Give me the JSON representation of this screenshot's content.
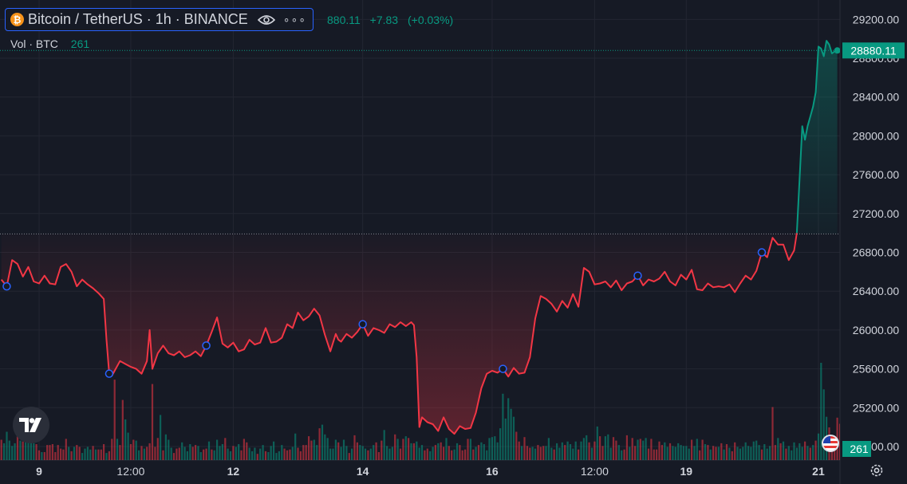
{
  "header": {
    "symbol_title": "Bitcoin / TetherUS · 1h · BINANCE",
    "coin_glyph": "₿",
    "more_label": "∘∘∘",
    "quote_partial_price": "880.11",
    "quote_change": "+7.83",
    "quote_change_pct": "(+0.03%)"
  },
  "volume_legend": {
    "label": "Vol · BTC",
    "value": "261"
  },
  "colors": {
    "up": "#089981",
    "down": "#f23645",
    "background": "#161a25",
    "grid": "#232632",
    "axis_text": "#d1d4dc"
  },
  "chart_data": {
    "type": "line",
    "price_axis": {
      "ticks": [
        29200,
        28800,
        28400,
        28000,
        27600,
        27200,
        26800,
        26400,
        26000,
        25600,
        25200,
        24800
      ],
      "tick_labels": [
        "29200.00",
        "28800.00",
        "28400.00",
        "28000.00",
        "27600.00",
        "27200.00",
        "26800.00",
        "26400.00",
        "26000.00",
        "25600.00",
        "25200.00",
        "24800.00"
      ],
      "last_price_label": "28880.11",
      "baseline": 26990,
      "range": [
        24660,
        29400
      ]
    },
    "volume_axis": {
      "last_volume_label": "261"
    },
    "time_axis": {
      "labels": [
        {
          "label": "9",
          "x": 14
        },
        {
          "label": "12:00",
          "x": 48
        },
        {
          "label": "12",
          "x": 86
        },
        {
          "label": "14",
          "x": 134
        },
        {
          "label": "16",
          "x": 182
        },
        {
          "label": "12:00",
          "x": 220
        },
        {
          "label": "19",
          "x": 254
        },
        {
          "label": "21",
          "x": 303
        }
      ],
      "range": [
        -0.5,
        311
      ]
    },
    "series": [
      {
        "x": [
          0,
          2,
          4,
          6,
          8,
          10,
          12,
          14,
          16,
          18,
          20,
          22,
          24,
          26,
          28,
          30,
          32,
          34,
          36,
          38,
          39,
          40,
          41,
          42,
          44,
          46,
          48,
          50,
          52,
          54,
          55,
          56,
          58,
          60,
          62,
          64,
          66,
          68,
          70,
          72,
          74,
          76,
          78,
          80,
          82,
          84,
          86,
          88,
          90,
          92,
          94,
          96,
          98,
          100,
          102,
          104,
          106,
          108,
          110,
          112,
          114,
          116,
          118,
          120,
          122,
          124,
          125,
          126,
          128,
          130,
          132,
          134,
          136,
          138,
          140,
          142,
          144,
          146,
          148,
          150,
          152,
          153,
          154,
          155,
          156,
          158,
          160,
          162,
          164,
          166,
          168,
          170,
          172,
          174,
          176,
          178,
          180,
          182,
          184,
          186,
          188,
          190,
          192,
          194,
          195,
          196,
          198,
          200,
          202,
          204,
          206,
          208,
          210,
          212,
          214,
          216,
          218,
          220,
          222,
          224,
          226,
          228,
          230,
          232,
          234,
          236,
          238,
          240,
          242,
          244,
          246,
          248,
          250,
          252,
          254,
          256,
          258,
          260,
          262,
          264,
          266,
          268,
          270,
          272,
          274,
          276,
          278,
          280,
          282,
          284,
          286,
          288,
          290,
          292,
          294,
          295
        ],
        "y": [
          26520,
          26450,
          26720,
          26680,
          26550,
          26650,
          26500,
          26480,
          26560,
          26480,
          26470,
          26650,
          26680,
          26600,
          26450,
          26520,
          26470,
          26430,
          26380,
          26320,
          25900,
          25550,
          25530,
          25580,
          25680,
          25650,
          25620,
          25600,
          25550,
          25680,
          26000,
          25600,
          25760,
          25840,
          25760,
          25740,
          25780,
          25720,
          25740,
          25780,
          25730,
          25840,
          25980,
          26130,
          25860,
          25820,
          25870,
          25780,
          25800,
          25900,
          25850,
          25870,
          26020,
          25870,
          25880,
          25920,
          26060,
          26020,
          26180,
          26100,
          26140,
          26220,
          26150,
          25950,
          25780,
          25960,
          25900,
          25880,
          25960,
          25920,
          25980,
          26060,
          25940,
          26020,
          26000,
          25970,
          26060,
          26030,
          26080,
          26040,
          26080,
          26050,
          25720,
          25000,
          25100,
          25050,
          25030,
          24960,
          25100,
          24980,
          24930,
          25010,
          24980,
          24990,
          25150,
          25400,
          25550,
          25580,
          25560,
          25600,
          25520,
          25610,
          25550,
          25560,
          25640,
          25720,
          26120,
          26350,
          26320,
          26270,
          26190,
          26300,
          26230,
          26370,
          26240,
          26640,
          26600,
          26470,
          26480,
          26500,
          26440,
          26510,
          26410,
          26480,
          26500,
          26560,
          26460,
          26520,
          26500,
          26530,
          26600,
          26500,
          26460,
          26570,
          26520,
          26620,
          26420,
          26410,
          26480,
          26440,
          26450,
          26440,
          26470,
          26390,
          26480,
          26560,
          26520,
          26610,
          26800,
          26750,
          26950,
          26880,
          26880,
          26720,
          26820,
          27000
        ],
        "line_color": "#f23645"
      },
      {
        "x": [
          295,
          296,
          297,
          298,
          299,
          300,
          301,
          302,
          303,
          304,
          305,
          306,
          307,
          308,
          309,
          310
        ],
        "y": [
          27000,
          27550,
          28100,
          27960,
          28100,
          28200,
          28300,
          28450,
          28920,
          28900,
          28820,
          28980,
          28940,
          28850,
          28870,
          28880
        ],
        "line_color": "#089981"
      }
    ],
    "last_point": [
      310,
      28880
    ],
    "marker_x": [
      2,
      40,
      76,
      134,
      186,
      236,
      282
    ],
    "volume": {
      "values": [
        23,
        19,
        32,
        22,
        16,
        19,
        27,
        22,
        21,
        29,
        33,
        25,
        19,
        18,
        11,
        9,
        9,
        17,
        17,
        18,
        9,
        17,
        13,
        12,
        24,
        15,
        10,
        15,
        17,
        15,
        8,
        13,
        15,
        12,
        16,
        12,
        12,
        12,
        18,
        8,
        10,
        24,
        91,
        24,
        17,
        68,
        46,
        31,
        18,
        23,
        22,
        11,
        16,
        13,
        15,
        19,
        86,
        15,
        25,
        51,
        11,
        29,
        23,
        14,
        8,
        13,
        14,
        20,
        15,
        10,
        18,
        15,
        17,
        16,
        9,
        12,
        13,
        21,
        12,
        11,
        23,
        16,
        18,
        25,
        13,
        10,
        16,
        15,
        18,
        11,
        24,
        20,
        14,
        10,
        14,
        7,
        13,
        17,
        10,
        9,
        16,
        21,
        8,
        10,
        17,
        13,
        11,
        12,
        15,
        30,
        14,
        10,
        17,
        17,
        27,
        22,
        23,
        17,
        36,
        40,
        29,
        25,
        13,
        13,
        23,
        20,
        15,
        23,
        16,
        8,
        13,
        28,
        20,
        17,
        16,
        13,
        11,
        13,
        17,
        20,
        9,
        22,
        34,
        16,
        13,
        15,
        29,
        24,
        13,
        24,
        27,
        25,
        19,
        19,
        21,
        14,
        17,
        11,
        13,
        10,
        15,
        17,
        19,
        20,
        15,
        25,
        16,
        11,
        12,
        19,
        17,
        11,
        12,
        24,
        24,
        12,
        15,
        17,
        20,
        18,
        11,
        25,
        26,
        27,
        20,
        36,
        75,
        47,
        70,
        58,
        49,
        32,
        21,
        16,
        26,
        16,
        14,
        15,
        13,
        17,
        15,
        16,
        16,
        25,
        14,
        12,
        19,
        14,
        20,
        17,
        21,
        18,
        13,
        21,
        12,
        21,
        25,
        28,
        20,
        14,
        21,
        38,
        27,
        16,
        27,
        29,
        14,
        26,
        22,
        17,
        11,
        12,
        28,
        15,
        25,
        16,
        23,
        24,
        22,
        25,
        13,
        24,
        12,
        12,
        21,
        17,
        20,
        15,
        19,
        16,
        15,
        19,
        17,
        16,
        16,
        13,
        23,
        16,
        24,
        11,
        23,
        18,
        17,
        12,
        16,
        15,
        15,
        19,
        12,
        18,
        14,
        10,
        20,
        15,
        13,
        15,
        20,
        16,
        15,
        21,
        22,
        17,
        12,
        18,
        13,
        16,
        60,
        17,
        25,
        19,
        21,
        13,
        16,
        11,
        20,
        14,
        19,
        15,
        21,
        16,
        14,
        17,
        22,
        30,
        110,
        80,
        49,
        37,
        23,
        18,
        48,
        41,
        29,
        17,
        27,
        16,
        20,
        14,
        12,
        15,
        16,
        12,
        14
      ],
      "directions": [
        -1,
        1,
        1,
        1,
        1,
        1,
        -1,
        1,
        -1,
        1,
        1,
        1,
        1,
        -1,
        -1,
        1,
        -1,
        -1,
        -1,
        -1,
        -1,
        -1,
        -1,
        -1,
        -1,
        1,
        -1,
        1,
        -1,
        -1,
        1,
        1,
        1,
        1,
        -1,
        1,
        -1,
        -1,
        -1,
        1,
        -1,
        -1,
        -1,
        1,
        -1,
        -1,
        1,
        1,
        -1,
        -1,
        1,
        1,
        -1,
        1,
        -1,
        -1,
        -1,
        -1,
        -1,
        1,
        -1,
        1,
        1,
        1,
        -1,
        -1,
        -1,
        1,
        1,
        1,
        1,
        -1,
        -1,
        1,
        1,
        -1,
        -1,
        1,
        -1,
        1,
        1,
        1,
        1,
        -1,
        1,
        1,
        -1,
        1,
        1,
        -1,
        -1,
        -1,
        1,
        1,
        1,
        -1,
        1,
        1,
        -1,
        1,
        1,
        1,
        1,
        1,
        1,
        -1,
        -1,
        -1,
        1,
        1,
        -1,
        -1,
        -1,
        -1,
        -1,
        -1,
        1,
        1,
        -1,
        1,
        1,
        1,
        1,
        1,
        1,
        -1,
        1,
        1,
        1,
        -1,
        1,
        -1,
        -1,
        1,
        1,
        1,
        -1,
        1,
        1,
        -1,
        -1,
        -1,
        1,
        1,
        1,
        1,
        -1,
        1,
        -1,
        -1,
        1,
        -1,
        1,
        -1,
        1,
        1,
        1,
        -1,
        -1,
        1,
        1,
        -1,
        1,
        -1,
        -1,
        1,
        -1,
        -1,
        1,
        1,
        -1,
        -1,
        -1,
        -1,
        1,
        -1,
        1,
        -1,
        1,
        1,
        1,
        1,
        1,
        1,
        1,
        1,
        1,
        1,
        1,
        1,
        1,
        -1,
        -1,
        1,
        -1,
        -1,
        -1,
        1,
        1,
        -1,
        -1,
        -1,
        1,
        1,
        1,
        -1,
        1,
        1,
        1,
        -1,
        1,
        1,
        1,
        1,
        -1,
        1,
        1,
        1,
        -1,
        1,
        -1,
        1,
        -1,
        -1,
        1,
        1,
        1,
        -1,
        -1,
        1,
        1,
        -1,
        -1,
        1,
        -1,
        -1,
        1,
        -1,
        1,
        1,
        -1,
        -1,
        -1,
        -1,
        -1,
        -1,
        1,
        1,
        -1,
        1,
        1,
        1,
        1,
        1,
        1,
        1,
        -1,
        1,
        1,
        -1,
        -1,
        1,
        -1,
        1,
        -1,
        -1,
        1,
        -1,
        1,
        -1,
        1,
        -1,
        -1,
        1,
        1,
        1,
        1,
        1,
        1,
        1,
        1,
        1,
        -1,
        1,
        1,
        1,
        -1,
        -1,
        1,
        -1,
        1,
        -1,
        1,
        1,
        1,
        1,
        1,
        1,
        -1,
        1,
        -1,
        1,
        -1,
        1,
        1,
        1,
        1,
        -1,
        -1,
        -1
      ],
      "max": 110
    }
  }
}
